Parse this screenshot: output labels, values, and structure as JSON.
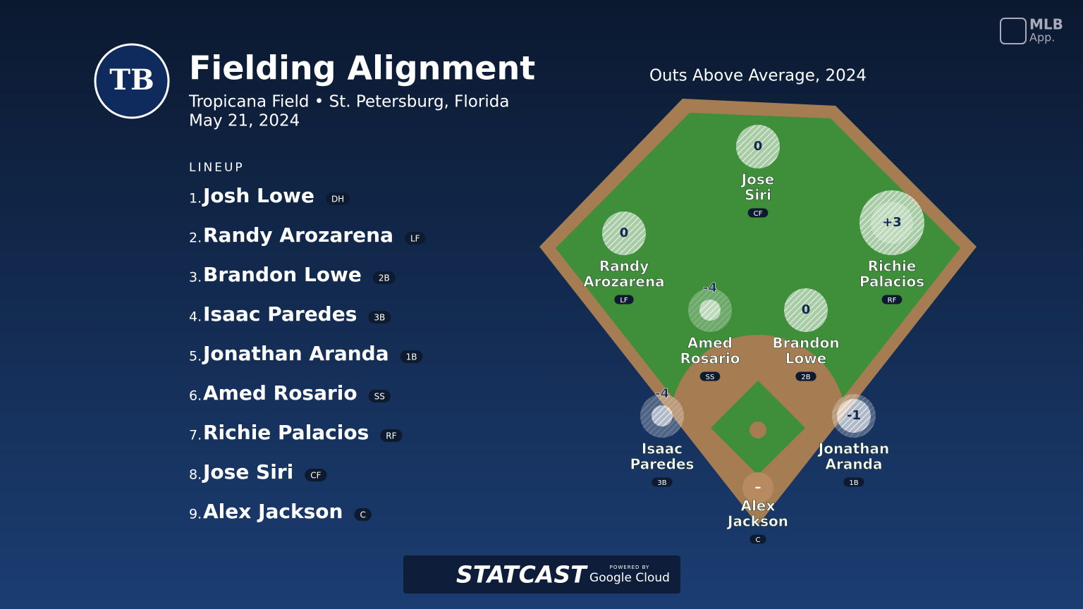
{
  "header": {
    "logo": "TB",
    "title": "Fielding Alignment",
    "venue": "Tropicana Field • St. Petersburg, Florida",
    "date": "May 21, 2024"
  },
  "branding": {
    "app_name": "MLB",
    "app_sub": "App.",
    "statcast": "STATCAST",
    "powered_by": "POWERED BY",
    "cloud": "Google Cloud"
  },
  "lineup": {
    "label": "LINEUP",
    "players": [
      {
        "number": "1.",
        "name": "Josh Lowe",
        "position": "DH"
      },
      {
        "number": "2.",
        "name": "Randy Arozarena",
        "position": "LF"
      },
      {
        "number": "3.",
        "name": "Brandon Lowe",
        "position": "2B"
      },
      {
        "number": "4.",
        "name": "Isaac Paredes",
        "position": "3B"
      },
      {
        "number": "5.",
        "name": "Jonathan Aranda",
        "position": "1B"
      },
      {
        "number": "6.",
        "name": "Amed Rosario",
        "position": "SS"
      },
      {
        "number": "7.",
        "name": "Richie Palacios",
        "position": "RF"
      },
      {
        "number": "8.",
        "name": "Jose Siri",
        "position": "CF"
      },
      {
        "number": "9.",
        "name": "Alex Jackson",
        "position": "C"
      }
    ]
  },
  "field": {
    "title": "Outs Above Average, 2024",
    "players": [
      {
        "name_lines": [
          "Jose",
          "Siri"
        ],
        "position": "CF",
        "oaa": "0"
      },
      {
        "name_lines": [
          "Randy",
          "Arozarena"
        ],
        "position": "LF",
        "oaa": "0"
      },
      {
        "name_lines": [
          "Richie",
          "Palacios"
        ],
        "position": "RF",
        "oaa": "+3"
      },
      {
        "name_lines": [
          "Amed",
          "Rosario"
        ],
        "position": "SS",
        "oaa": "-4"
      },
      {
        "name_lines": [
          "Brandon",
          "Lowe"
        ],
        "position": "2B",
        "oaa": "0"
      },
      {
        "name_lines": [
          "Isaac",
          "Paredes"
        ],
        "position": "3B",
        "oaa": "-4"
      },
      {
        "name_lines": [
          "Jonathan",
          "Aranda"
        ],
        "position": "1B",
        "oaa": "-1"
      },
      {
        "name_lines": [
          "Alex",
          "Jackson"
        ],
        "position": "C",
        "oaa": "–"
      }
    ]
  }
}
